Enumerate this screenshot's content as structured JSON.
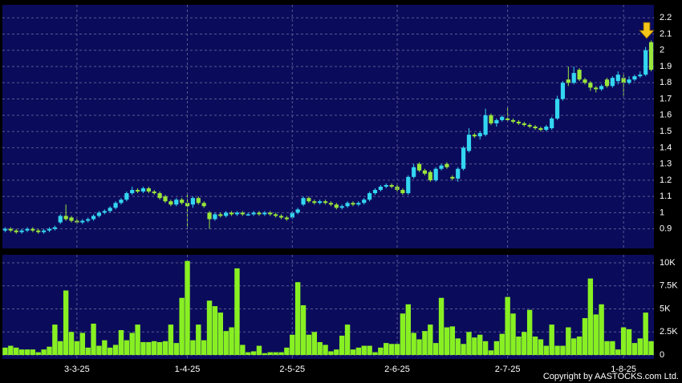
{
  "chart_data": [
    {
      "type": "candlestick",
      "open": [
        0.89,
        0.9,
        0.89,
        0.88,
        0.89,
        0.9,
        0.89,
        0.88,
        0.89,
        0.9,
        0.94,
        0.98,
        0.97,
        0.95,
        0.94,
        0.95,
        0.96,
        0.98,
        1.0,
        1.01,
        1.03,
        1.06,
        1.08,
        1.12,
        1.14,
        1.13,
        1.15,
        1.13,
        1.12,
        1.1,
        1.07,
        1.05,
        1.08,
        1.06,
        1.05,
        1.09,
        1.06,
        1.0,
        0.96,
        0.99,
        0.98,
        1.0,
        0.99,
        1.0,
        0.99,
        0.99,
        1.0,
        0.99,
        1.0,
        0.99,
        0.98,
        0.97,
        0.97,
        1.0,
        1.05,
        1.09,
        1.07,
        1.06,
        1.07,
        1.06,
        1.05,
        1.03,
        1.04,
        1.06,
        1.05,
        1.06,
        1.08,
        1.12,
        1.14,
        1.16,
        1.17,
        1.16,
        1.14,
        1.12,
        1.22,
        1.3,
        1.26,
        1.25,
        1.2,
        1.27,
        1.3,
        1.22,
        1.21,
        1.27,
        1.38,
        1.48,
        1.47,
        1.48,
        1.6,
        1.55,
        1.57,
        1.58,
        1.57,
        1.56,
        1.55,
        1.54,
        1.53,
        1.52,
        1.51,
        1.52,
        1.58,
        1.7,
        1.82,
        1.8,
        1.88,
        1.82,
        1.8,
        1.77,
        1.76,
        1.82,
        1.78,
        1.81,
        1.83,
        1.8,
        1.82,
        1.84,
        1.85,
        2.05
      ],
      "high": [
        0.91,
        0.91,
        0.9,
        0.9,
        0.91,
        0.91,
        0.9,
        0.9,
        0.91,
        0.92,
        0.99,
        1.05,
        0.98,
        0.96,
        0.96,
        0.97,
        0.99,
        1.01,
        1.02,
        1.04,
        1.07,
        1.09,
        1.13,
        1.16,
        1.15,
        1.16,
        1.16,
        1.14,
        1.13,
        1.11,
        1.08,
        1.09,
        1.09,
        1.12,
        1.1,
        1.1,
        1.07,
        1.01,
        1.0,
        1.0,
        1.01,
        1.01,
        1.01,
        1.01,
        1.0,
        1.01,
        1.01,
        1.01,
        1.01,
        1.0,
        0.99,
        0.98,
        1.01,
        1.03,
        1.1,
        1.1,
        1.08,
        1.08,
        1.08,
        1.07,
        1.06,
        1.05,
        1.07,
        1.07,
        1.07,
        1.09,
        1.13,
        1.15,
        1.17,
        1.18,
        1.18,
        1.17,
        1.15,
        1.23,
        1.3,
        1.31,
        1.27,
        1.26,
        1.28,
        1.3,
        1.31,
        1.23,
        1.28,
        1.41,
        1.52,
        1.49,
        1.5,
        1.64,
        1.61,
        1.58,
        1.6,
        1.65,
        1.58,
        1.57,
        1.56,
        1.55,
        1.54,
        1.53,
        1.54,
        1.59,
        1.72,
        1.81,
        1.9,
        1.9,
        1.89,
        1.83,
        1.81,
        1.78,
        1.79,
        1.83,
        1.84,
        1.87,
        1.85,
        1.84,
        1.85,
        1.87,
        2.02,
        2.06
      ],
      "low": [
        0.88,
        0.88,
        0.87,
        0.87,
        0.88,
        0.88,
        0.87,
        0.87,
        0.88,
        0.89,
        0.93,
        0.95,
        0.94,
        0.93,
        0.93,
        0.94,
        0.95,
        0.97,
        0.99,
        1.0,
        1.02,
        1.05,
        1.07,
        1.11,
        1.12,
        1.12,
        1.12,
        1.11,
        1.08,
        1.06,
        1.04,
        1.04,
        1.05,
        0.9,
        1.03,
        1.05,
        1.03,
        0.9,
        0.95,
        0.97,
        0.97,
        0.98,
        0.98,
        0.98,
        0.98,
        0.98,
        0.98,
        0.98,
        0.98,
        0.97,
        0.96,
        0.95,
        0.96,
        0.99,
        1.04,
        1.06,
        1.05,
        1.05,
        1.05,
        1.04,
        1.02,
        1.02,
        1.03,
        1.04,
        1.04,
        1.05,
        1.07,
        1.11,
        1.13,
        1.15,
        1.15,
        1.13,
        1.11,
        1.11,
        1.21,
        1.25,
        1.23,
        1.19,
        1.19,
        1.26,
        1.27,
        1.2,
        1.19,
        1.26,
        1.37,
        1.46,
        1.45,
        1.47,
        1.54,
        1.53,
        1.56,
        1.56,
        1.55,
        1.54,
        1.53,
        1.52,
        1.51,
        1.5,
        1.5,
        1.51,
        1.57,
        1.69,
        1.78,
        1.79,
        1.81,
        1.79,
        1.75,
        1.74,
        1.75,
        1.77,
        1.77,
        1.79,
        1.72,
        1.79,
        1.81,
        1.83,
        1.84,
        1.87
      ],
      "close": [
        0.9,
        0.89,
        0.88,
        0.89,
        0.9,
        0.89,
        0.88,
        0.89,
        0.9,
        0.91,
        0.98,
        0.96,
        0.95,
        0.94,
        0.95,
        0.96,
        0.98,
        1.0,
        1.01,
        1.03,
        1.06,
        1.08,
        1.12,
        1.14,
        1.13,
        1.15,
        1.13,
        1.12,
        1.09,
        1.07,
        1.05,
        1.08,
        1.06,
        1.04,
        1.09,
        1.06,
        1.04,
        0.96,
        0.99,
        0.98,
        1.0,
        0.99,
        1.0,
        0.99,
        0.99,
        1.0,
        0.99,
        1.0,
        0.99,
        0.98,
        0.97,
        0.96,
        1.0,
        1.02,
        1.09,
        1.07,
        1.06,
        1.07,
        1.06,
        1.05,
        1.03,
        1.04,
        1.06,
        1.05,
        1.06,
        1.08,
        1.12,
        1.14,
        1.16,
        1.17,
        1.16,
        1.14,
        1.12,
        1.22,
        1.28,
        1.26,
        1.24,
        1.2,
        1.27,
        1.29,
        1.28,
        1.21,
        1.27,
        1.4,
        1.48,
        1.47,
        1.49,
        1.6,
        1.55,
        1.57,
        1.59,
        1.57,
        1.56,
        1.55,
        1.54,
        1.53,
        1.52,
        1.51,
        1.53,
        1.58,
        1.7,
        1.8,
        1.8,
        1.86,
        1.82,
        1.8,
        1.77,
        1.76,
        1.78,
        1.78,
        1.83,
        1.85,
        1.8,
        1.82,
        1.84,
        1.85,
        2.0,
        1.88
      ],
      "ylim": [
        0.78,
        2.28
      ],
      "yticks": [
        0.9,
        1,
        1.1,
        1.2,
        1.3,
        1.4,
        1.5,
        1.6,
        1.7,
        1.8,
        1.9,
        2,
        2.1,
        2.2
      ],
      "grid": true,
      "up_color": "#33d6f0",
      "down_color": "#99e63a"
    },
    {
      "type": "bar",
      "categories": [
        null,
        null,
        null,
        null,
        null,
        null,
        null,
        null,
        null,
        null,
        null,
        null,
        null,
        "3-3-25",
        null,
        null,
        null,
        null,
        null,
        null,
        null,
        null,
        null,
        null,
        null,
        null,
        null,
        null,
        null,
        null,
        null,
        null,
        null,
        "1-4-25",
        null,
        null,
        null,
        null,
        null,
        null,
        null,
        null,
        null,
        null,
        null,
        null,
        null,
        null,
        null,
        null,
        null,
        null,
        "2-5-25",
        null,
        null,
        null,
        null,
        null,
        null,
        null,
        null,
        null,
        null,
        null,
        null,
        null,
        null,
        null,
        null,
        null,
        null,
        "2-6-25",
        null,
        null,
        null,
        null,
        null,
        null,
        null,
        null,
        null,
        null,
        null,
        null,
        null,
        null,
        null,
        null,
        null,
        null,
        null,
        "2-7-25",
        null,
        null,
        null,
        null,
        null,
        null,
        null,
        null,
        null,
        null,
        null,
        null,
        null,
        null,
        null,
        null,
        null,
        null,
        null,
        null,
        "1-8-25",
        null,
        null,
        null,
        null,
        null
      ],
      "values": [
        800,
        1000,
        800,
        600,
        600,
        600,
        300,
        600,
        900,
        3300,
        1500,
        7000,
        2500,
        1500,
        2400,
        800,
        3400,
        1000,
        1600,
        800,
        1100,
        2700,
        1600,
        2400,
        3300,
        1400,
        1400,
        1500,
        1400,
        1500,
        3300,
        1300,
        6200,
        10200,
        1600,
        3300,
        1600,
        5900,
        5300,
        4600,
        2600,
        3000,
        9400,
        1100,
        300,
        400,
        1000,
        200,
        300,
        300,
        300,
        800,
        2200,
        7900,
        5400,
        2200,
        2500,
        1400,
        1100,
        400,
        600,
        2100,
        3300,
        600,
        800,
        1000,
        1000,
        300,
        800,
        1300,
        1200,
        1200,
        4500,
        5500,
        2400,
        1700,
        2600,
        3300,
        1300,
        6200,
        3000,
        3100,
        1800,
        1200,
        2500,
        1900,
        2200,
        1500,
        500,
        1500,
        2300,
        6300,
        4500,
        2000,
        2500,
        4900,
        2000,
        1700,
        1000,
        3300,
        1000,
        1000,
        3000,
        1800,
        2000,
        4000,
        8300,
        4400,
        5500,
        1500,
        1500,
        600,
        3000,
        2800,
        1300,
        1800,
        4600,
        1500
      ],
      "ylim": [
        -430,
        10870
      ],
      "yticks": [
        0,
        {
          "value": 2500,
          "label": "2.5K"
        },
        {
          "value": 5000,
          "label": "5K"
        },
        {
          "value": 7500,
          "label": "7.5K"
        },
        {
          "value": 10000,
          "label": "10K"
        }
      ],
      "grid": true,
      "color": "#88f022"
    }
  ],
  "copyright": "Copyright by AASTOCKS.com Ltd."
}
